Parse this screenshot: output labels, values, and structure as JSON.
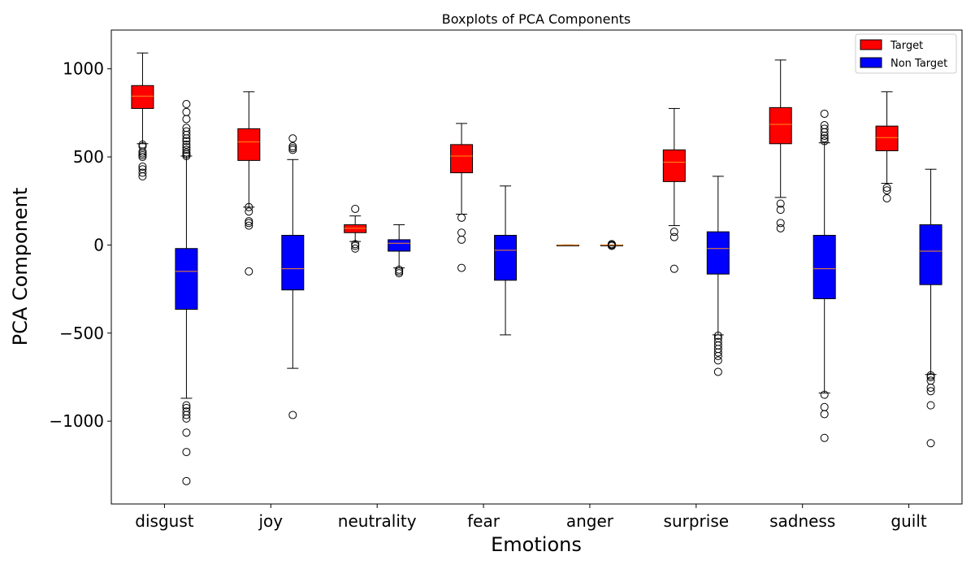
{
  "chart_data": {
    "type": "boxplot",
    "title": "Boxplots of PCA Components",
    "xlabel": "Emotions",
    "ylabel": "PCA Component",
    "ylim": [
      -1470,
      1220
    ],
    "yticks": [
      1000,
      500,
      0,
      -500,
      -1000
    ],
    "ytick_labels": [
      "1000",
      "500",
      "0",
      "−500",
      "−1000"
    ],
    "categories": [
      "disgust",
      "joy",
      "neutrality",
      "fear",
      "anger",
      "surprise",
      "sadness",
      "guilt"
    ],
    "grid": false,
    "legend_position": "top-right",
    "series": [
      {
        "name": "Target",
        "color": "#ff0000",
        "boxes": [
          {
            "whisker_low": 575,
            "q1": 775,
            "median": 845,
            "q3": 905,
            "whisker_high": 1090,
            "outliers": [
              390,
              410,
              430,
              445,
              500,
              510,
              520,
              530,
              560,
              570
            ]
          },
          {
            "whisker_low": 215,
            "q1": 480,
            "median": 585,
            "q3": 660,
            "whisker_high": 870,
            "outliers": [
              -150,
              110,
              125,
              135,
              190,
              215
            ]
          },
          {
            "whisker_low": 20,
            "q1": 70,
            "median": 95,
            "q3": 115,
            "whisker_high": 165,
            "outliers": [
              -20,
              -5,
              5,
              205
            ]
          },
          {
            "whisker_low": 175,
            "q1": 410,
            "median": 505,
            "q3": 570,
            "whisker_high": 690,
            "outliers": [
              -130,
              30,
              70,
              155
            ]
          },
          {
            "whisker_low": 0,
            "q1": 0,
            "median": 0,
            "q3": 0,
            "whisker_high": 0,
            "outliers": []
          },
          {
            "whisker_low": 110,
            "q1": 360,
            "median": 470,
            "q3": 540,
            "whisker_high": 775,
            "outliers": [
              -135,
              45,
              75
            ]
          },
          {
            "whisker_low": 270,
            "q1": 575,
            "median": 685,
            "q3": 780,
            "whisker_high": 1050,
            "outliers": [
              95,
              125,
              200,
              235
            ]
          },
          {
            "whisker_low": 350,
            "q1": 535,
            "median": 610,
            "q3": 675,
            "whisker_high": 870,
            "outliers": [
              265,
              310,
              325
            ]
          }
        ]
      },
      {
        "name": "Non Target",
        "color": "#0000ff",
        "boxes": [
          {
            "whisker_low": -870,
            "q1": -365,
            "median": -150,
            "q3": -20,
            "whisker_high": 505,
            "outliers": [
              -1340,
              -1175,
              -1065,
              -985,
              -965,
              -945,
              -925,
              -910,
              505,
              515,
              525,
              540,
              555,
              570,
              590,
              605,
              625,
              645,
              665,
              715,
              755,
              800
            ]
          },
          {
            "whisker_low": -700,
            "q1": -255,
            "median": -135,
            "q3": 55,
            "whisker_high": 485,
            "outliers": [
              -965,
              540,
              550,
              560,
              605
            ]
          },
          {
            "whisker_low": -130,
            "q1": -35,
            "median": 10,
            "q3": 30,
            "whisker_high": 115,
            "outliers": [
              -160,
              -150,
              -140
            ]
          },
          {
            "whisker_low": -510,
            "q1": -200,
            "median": -30,
            "q3": 55,
            "whisker_high": 335,
            "outliers": []
          },
          {
            "whisker_low": 0,
            "q1": 0,
            "median": 0,
            "q3": 0,
            "whisker_high": 0,
            "outliers": [
              -5,
              0,
              5
            ]
          },
          {
            "whisker_low": -510,
            "q1": -165,
            "median": -20,
            "q3": 75,
            "whisker_high": 390,
            "outliers": [
              -720,
              -655,
              -630,
              -610,
              -590,
              -570,
              -550,
              -530,
              -515
            ]
          },
          {
            "whisker_low": -840,
            "q1": -305,
            "median": -135,
            "q3": 55,
            "whisker_high": 580,
            "outliers": [
              -1095,
              -960,
              -920,
              -850,
              590,
              605,
              620,
              640,
              660,
              680,
              745
            ]
          },
          {
            "whisker_low": -735,
            "q1": -225,
            "median": -35,
            "q3": 115,
            "whisker_high": 430,
            "outliers": [
              -1125,
              -910,
              -830,
              -810,
              -770,
              -750,
              -740
            ]
          }
        ]
      }
    ]
  }
}
